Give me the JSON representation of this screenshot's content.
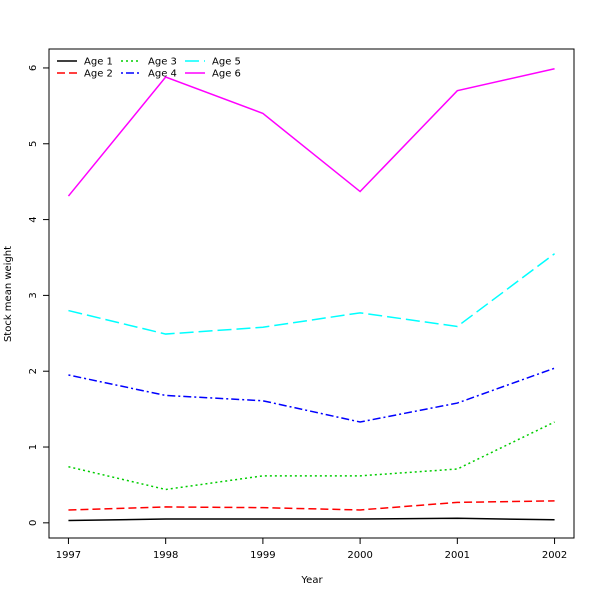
{
  "chart_data": {
    "type": "line",
    "xlabel": "Year",
    "ylabel": "Stock mean weight",
    "x": [
      1997,
      1998,
      1999,
      2000,
      2001,
      2002
    ],
    "xlim": [
      1996.8,
      2002.2
    ],
    "ylim": [
      -0.2,
      6.25
    ],
    "yticks": [
      0,
      1,
      2,
      3,
      4,
      5,
      6
    ],
    "grid": false,
    "legend_position": "top-left",
    "series": [
      {
        "name": "Age 1",
        "color": "#000000",
        "dash": "solid",
        "values": [
          0.03,
          0.05,
          0.05,
          0.05,
          0.06,
          0.04
        ]
      },
      {
        "name": "Age 2",
        "color": "#ff0000",
        "dash": "dashed",
        "values": [
          0.17,
          0.21,
          0.2,
          0.17,
          0.27,
          0.29
        ]
      },
      {
        "name": "Age 3",
        "color": "#00cd00",
        "dash": "dotted",
        "values": [
          0.74,
          0.44,
          0.62,
          0.62,
          0.71,
          1.33
        ]
      },
      {
        "name": "Age 4",
        "color": "#0000ff",
        "dash": "dotdash",
        "values": [
          1.95,
          1.68,
          1.61,
          1.33,
          1.58,
          2.04
        ]
      },
      {
        "name": "Age 5",
        "color": "#00ffff",
        "dash": "longdash",
        "values": [
          2.8,
          2.49,
          2.58,
          2.77,
          2.59,
          3.55
        ]
      },
      {
        "name": "Age 6",
        "color": "#ff00ff",
        "dash": "solid",
        "values": [
          4.31,
          5.88,
          5.4,
          4.37,
          5.7,
          5.99
        ]
      }
    ]
  }
}
